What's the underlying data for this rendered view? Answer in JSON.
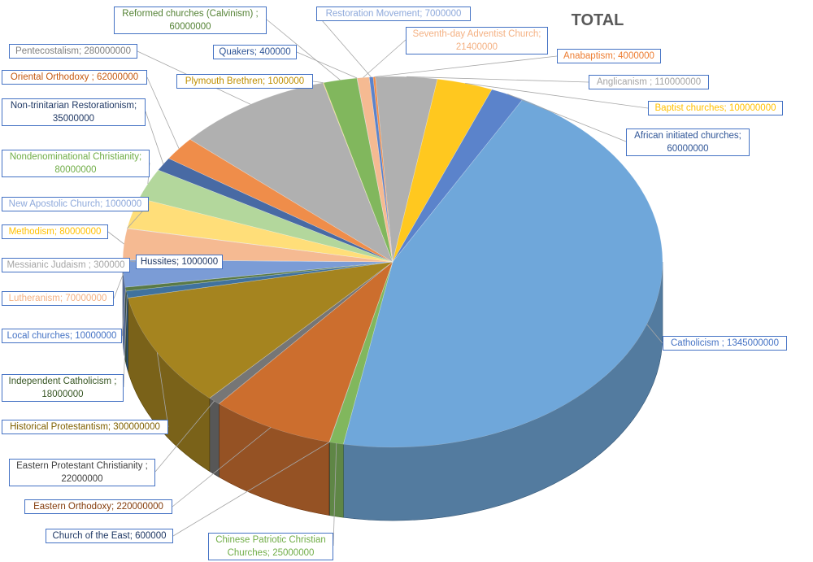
{
  "chart_data": {
    "type": "pie",
    "title": "TOTAL",
    "data_labels": "category; value",
    "slices": [
      {
        "label": "Restoration Movement",
        "value": 7000000,
        "color": "#4472c4",
        "label_color": "#8ea9db",
        "text": "Restoration Movement; 7000000"
      },
      {
        "label": "Anabaptism",
        "value": 4000000,
        "color": "#ed7d31",
        "label_color": "#ed7d31",
        "text": "Anabaptism; 4000000"
      },
      {
        "label": "Anglicanism",
        "value": 110000000,
        "color": "#a5a5a5",
        "label_color": "#a5a5a5",
        "text": "Anglicanism ; 110000000"
      },
      {
        "label": "Baptist churches",
        "value": 100000000,
        "color": "#ffc000",
        "label_color": "#ffc000",
        "text": "Baptist churches; 100000000"
      },
      {
        "label": "African initiated churches",
        "value": 60000000,
        "color": "#4472c4",
        "label_color": "#2f5597",
        "text": "African initiated churches; 60000000"
      },
      {
        "label": "Catholicism",
        "value": 1345000000,
        "color": "#5b9bd5",
        "label_color": "#4472c4",
        "text": "Catholicism ; 1345000000"
      },
      {
        "label": "Chinese Patriotic Christian Churches",
        "value": 25000000,
        "color": "#70ad47",
        "label_color": "#70ad47",
        "text": "Chinese Patriotic Christian Churches; 25000000"
      },
      {
        "label": "Church of the East",
        "value": 600000,
        "color": "#264478",
        "label_color": "#1f3864",
        "text": "Church of the East; 600000"
      },
      {
        "label": "Eastern Orthodoxy",
        "value": 220000000,
        "color": "#c55a11",
        "label_color": "#843c0c",
        "text": "Eastern Orthodoxy; 220000000"
      },
      {
        "label": "Eastern Protestant Christianity",
        "value": 22000000,
        "color": "#636363",
        "label_color": "#404040",
        "text": "Eastern Protestant Christianity ; 22000000"
      },
      {
        "label": "Historical Protestantism",
        "value": 300000000,
        "color": "#997300",
        "label_color": "#7f6000",
        "text": "Historical Protestantism; 300000000"
      },
      {
        "label": "Independent Catholicism",
        "value": 18000000,
        "color": "#255e91",
        "label_color": "#375623",
        "text": "Independent Catholicism ; 18000000"
      },
      {
        "label": "Local churches",
        "value": 10000000,
        "color": "#43682b",
        "label_color": "#4472c4",
        "text": "Local churches; 10000000"
      },
      {
        "label": "Lutheranism",
        "value": 70000000,
        "color": "#698ed0",
        "label_color": "#f4b183",
        "text": "Lutheranism; 70000000"
      },
      {
        "label": "Messianic Judaism",
        "value": 300000,
        "color": "#b7b7b7",
        "label_color": "#a5a5a5",
        "text": "Messianic Judaism ; 300000"
      },
      {
        "label": "Hussites",
        "value": 1000000,
        "color": "#1f4e79",
        "label_color": "#203864",
        "text": "Hussites; 1000000"
      },
      {
        "label": "Methodism",
        "value": 80000000,
        "color": "#f4b183",
        "label_color": "#ffc000",
        "text": "Methodism; 80000000"
      },
      {
        "label": "New Apostolic Church",
        "value": 1000000,
        "color": "#8faadc",
        "label_color": "#8ea9db",
        "text": "New Apostolic Church; 1000000"
      },
      {
        "label": "Methodism (2)",
        "value": 80000000,
        "color": "#ffd966",
        "label_color": "#ffc000",
        "text": ""
      },
      {
        "label": "Nondenominational Christianity",
        "value": 80000000,
        "color": "#a9d18e",
        "label_color": "#70ad47",
        "text": "Nondenominational Christianity; 80000000"
      },
      {
        "label": "Non-trinitarian Restorationism",
        "value": 35000000,
        "color": "#2f5597",
        "label_color": "#1f3864",
        "text": "Non-trinitarian Restorationism; 35000000"
      },
      {
        "label": "Oriental Orthodoxy",
        "value": 62000000,
        "color": "#ed7d31",
        "label_color": "#c55a11",
        "text": "Oriental Orthodoxy ; 62000000"
      },
      {
        "label": "Pentecostalism",
        "value": 280000000,
        "color": "#a5a5a5",
        "label_color": "#7f7f7f",
        "text": "Pentecostalism; 280000000"
      },
      {
        "label": "Plymouth Brethren",
        "value": 1000000,
        "color": "#ffc000",
        "label_color": "#bf8f00",
        "text": "Plymouth Brethren; 1000000"
      },
      {
        "label": "Reformed churches (Calvinism)",
        "value": 60000000,
        "color": "#70ad47",
        "label_color": "#548235",
        "text": "Reformed churches (Calvinism) ; 60000000"
      },
      {
        "label": "Quakers",
        "value": 400000,
        "color": "#4472c4",
        "label_color": "#2f5597",
        "text": "Quakers; 400000"
      },
      {
        "label": "Seventh-day Adventist Church",
        "value": 21400000,
        "color": "#f4b183",
        "label_color": "#f4b183",
        "text": "Seventh-day Adventist Church; 21400000"
      }
    ]
  }
}
